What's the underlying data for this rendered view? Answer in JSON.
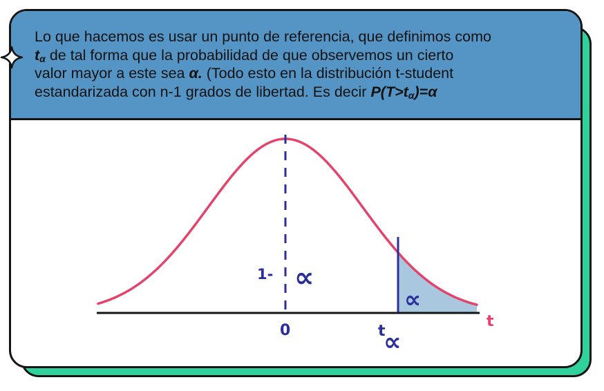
{
  "header": {
    "line1": "Lo que hacemos es usar un punto de referencia, que definimos como",
    "line2_var": "t",
    "line2_sub": "α",
    "line2_rest": " de tal forma que la probabilidad de que observemos un cierto",
    "line3_a": "valor mayor a este sea ",
    "line3_alpha": "α.",
    "line3_b": "  (Todo esto en la distribución t-student",
    "line4_a": "estandarizada con n-1 grados de libertad. Es decir  ",
    "line4_formula_pre": "P(T>t",
    "line4_formula_sub": "α",
    "line4_formula_post": ")=α"
  },
  "diagram": {
    "label_one_minus": "1-",
    "label_alpha_center": "∝",
    "label_alpha_tail": "∝",
    "label_zero": "0",
    "label_t_alpha_t": "t",
    "label_t_alpha_sym": "∝",
    "label_axis_t": "t"
  },
  "colors": {
    "curve": "#e2446b",
    "dashed_line": "#2b2f9a",
    "critical_line": "#2b2f9a",
    "tail_fill": "#a9c8e0",
    "axis": "#141414",
    "header_bg": "#5595c6",
    "shadow": "#2fd29a"
  }
}
